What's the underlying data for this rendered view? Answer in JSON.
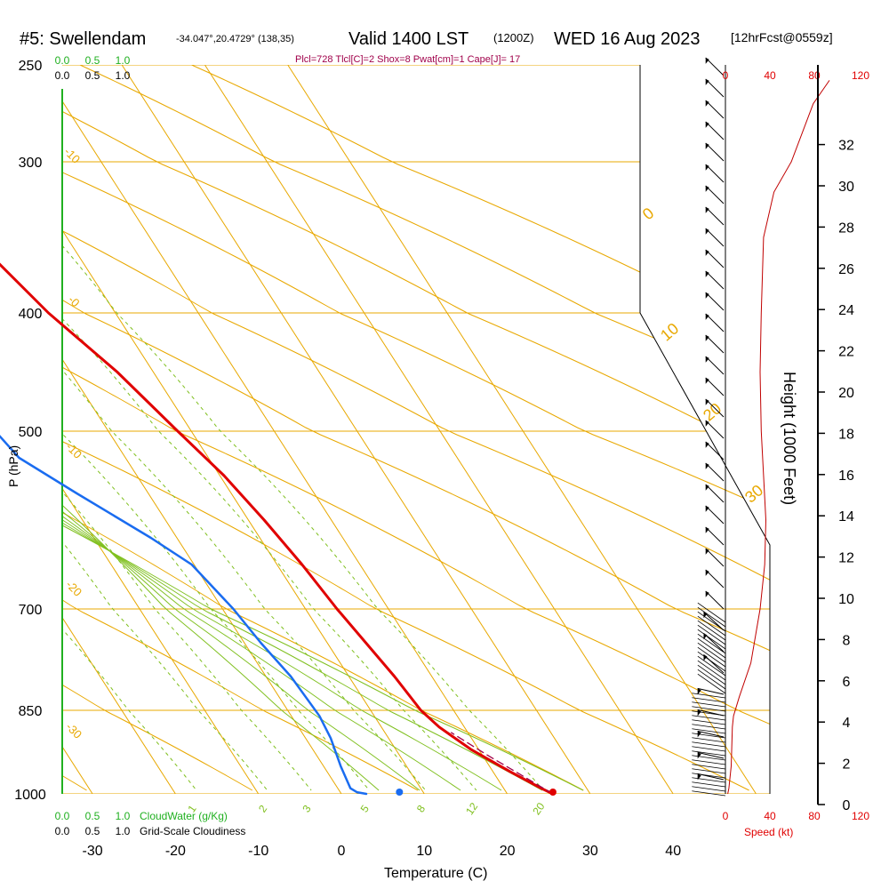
{
  "header": {
    "station": "#5: Swellendam",
    "coords": "-34.047°,20.4729° (138,35)",
    "valid": "Valid 1400 LST",
    "zulu": "(1200Z)",
    "date": "WED 16 Aug 2023",
    "forecast": "[12hrFcst@0559z]",
    "indices": "Plcl=728 Tlcl[C]=2 Shox=8 Pwat[cm]=1 Cape[J]= 17"
  },
  "colors": {
    "temperature": "#e00000",
    "dewpoint": "#1a6cf0",
    "isotherm": "#e8a800",
    "mixing_ratio": "#80c020",
    "grid": "#e8a800",
    "wind_speed": "#c00000",
    "cloud_green": "#20b020",
    "indices_text": "#a0004a"
  },
  "chart_data": {
    "type": "line",
    "title": "",
    "xlabel": "Temperature (C)",
    "ylabel": "P (hPa)",
    "xlim": [
      -34,
      35
    ],
    "x_ticks": [
      -30,
      -20,
      -10,
      0,
      10,
      20,
      30,
      40
    ],
    "pressure_levels": [
      250,
      300,
      400,
      500,
      700,
      850,
      1000
    ],
    "right_axis": {
      "label": "Height (1000 Feet)",
      "ticks": [
        0,
        2,
        4,
        6,
        8,
        10,
        12,
        14,
        16,
        18,
        20,
        22,
        24,
        26,
        28,
        30,
        32
      ]
    },
    "cloud_scale_labels": [
      "0.0",
      "0.5",
      "1.0"
    ],
    "cloud_water_label": "CloudWater (g/Kg)",
    "cloudiness_label": "Grid-Scale Cloudiness",
    "speed_axis": {
      "label": "Speed (kt)",
      "ticks": [
        "0",
        "40",
        "80",
        "120"
      ]
    },
    "isotherm_labels_right": [
      "0",
      "10",
      "20",
      "30"
    ],
    "isotherm_labels_left": [
      "-10",
      "-0",
      "-10",
      "-20",
      "-30"
    ],
    "mixing_ratio_labels": [
      "1",
      "2",
      "3",
      "5",
      "8",
      "12",
      "20"
    ],
    "series": [
      {
        "name": "Temperature",
        "points": [
          [
            25.5,
            1000
          ],
          [
            24.5,
            990
          ],
          [
            22,
            960
          ],
          [
            19,
            920
          ],
          [
            17,
            880
          ],
          [
            16.2,
            850
          ],
          [
            15.5,
            800
          ],
          [
            14,
            700
          ],
          [
            12.8,
            650
          ],
          [
            11.5,
            600
          ],
          [
            10.2,
            550
          ],
          [
            8.5,
            500
          ],
          [
            5.5,
            450
          ],
          [
            2,
            400
          ],
          [
            -1,
            360
          ],
          [
            -2.5,
            320
          ],
          [
            -3.2,
            290
          ],
          [
            -3.5,
            265
          ]
        ]
      },
      {
        "name": "Dewpoint",
        "points": [
          [
            3,
            1000
          ],
          [
            2,
            997
          ],
          [
            1.5,
            990
          ],
          [
            2,
            950
          ],
          [
            3,
            900
          ],
          [
            3.5,
            860
          ],
          [
            3,
            800
          ],
          [
            2,
            750
          ],
          [
            1.5,
            700
          ],
          [
            -0.5,
            650
          ],
          [
            -3.5,
            620
          ],
          [
            -9,
            570
          ],
          [
            -13,
            530
          ],
          [
            -13.5,
            500
          ],
          [
            -13,
            470
          ],
          [
            -10,
            420
          ],
          [
            -8.5,
            400
          ],
          [
            -7.5,
            365
          ],
          [
            -9,
            340
          ],
          [
            -14,
            320
          ],
          [
            -17,
            305
          ],
          [
            -19,
            290
          ],
          [
            -20,
            280
          ],
          [
            -19,
            268
          ]
        ]
      },
      {
        "name": "Parcel",
        "points": [
          [
            25.5,
            1000
          ],
          [
            23,
            965
          ],
          [
            20.5,
            930
          ],
          [
            18,
            890
          ]
        ]
      },
      {
        "name": "Wind speed",
        "points": [
          [
            2,
            1000
          ],
          [
            3,
            990
          ],
          [
            5,
            950
          ],
          [
            6,
            880
          ],
          [
            7,
            860
          ],
          [
            12,
            830
          ],
          [
            22,
            780
          ],
          [
            30,
            700
          ],
          [
            34,
            650
          ],
          [
            35,
            600
          ],
          [
            33,
            550
          ],
          [
            31,
            500
          ],
          [
            30,
            450
          ],
          [
            31,
            400
          ],
          [
            33,
            350
          ],
          [
            42,
            320
          ],
          [
            57,
            300
          ],
          [
            76,
            270
          ],
          [
            90,
            258
          ]
        ]
      }
    ],
    "surface_dewpoint_marker": [
      7,
      1000
    ],
    "surface_temperature_marker": [
      25.5,
      1000
    ]
  }
}
